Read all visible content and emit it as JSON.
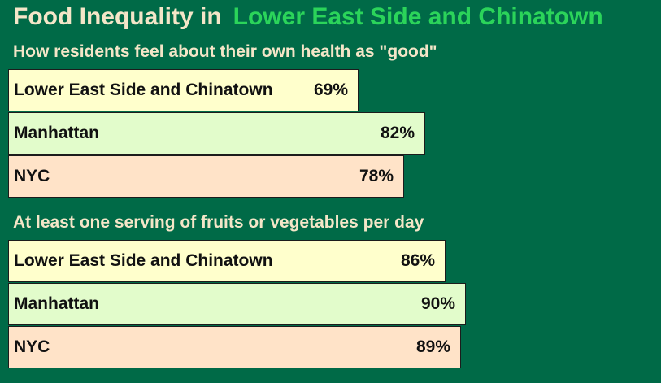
{
  "title": {
    "prefix": "Food Inequality in",
    "highlight": "Lower East Side and Chinatown"
  },
  "colors": {
    "background": "#006a47",
    "title_text": "#f4e6c8",
    "highlight_text": "#2bd45a",
    "series": [
      "#ffffcc",
      "#e2fccb",
      "#ffe3c8"
    ]
  },
  "chart_data": [
    {
      "type": "bar",
      "orientation": "horizontal",
      "title": "How residents feel about their own health as \"good\"",
      "unit": "%",
      "categories": [
        "Lower East Side and Chinatown",
        "Manhattan",
        "NYC"
      ],
      "values": [
        69,
        82,
        78
      ],
      "value_labels": [
        "69%",
        "82%",
        "78%"
      ]
    },
    {
      "type": "bar",
      "orientation": "horizontal",
      "title": "At least one serving of fruits or vegetables per day",
      "unit": "%",
      "categories": [
        "Lower East Side and Chinatown",
        "Manhattan",
        "NYC"
      ],
      "values": [
        86,
        90,
        89
      ],
      "value_labels": [
        "86%",
        "90%",
        "89%"
      ]
    }
  ]
}
